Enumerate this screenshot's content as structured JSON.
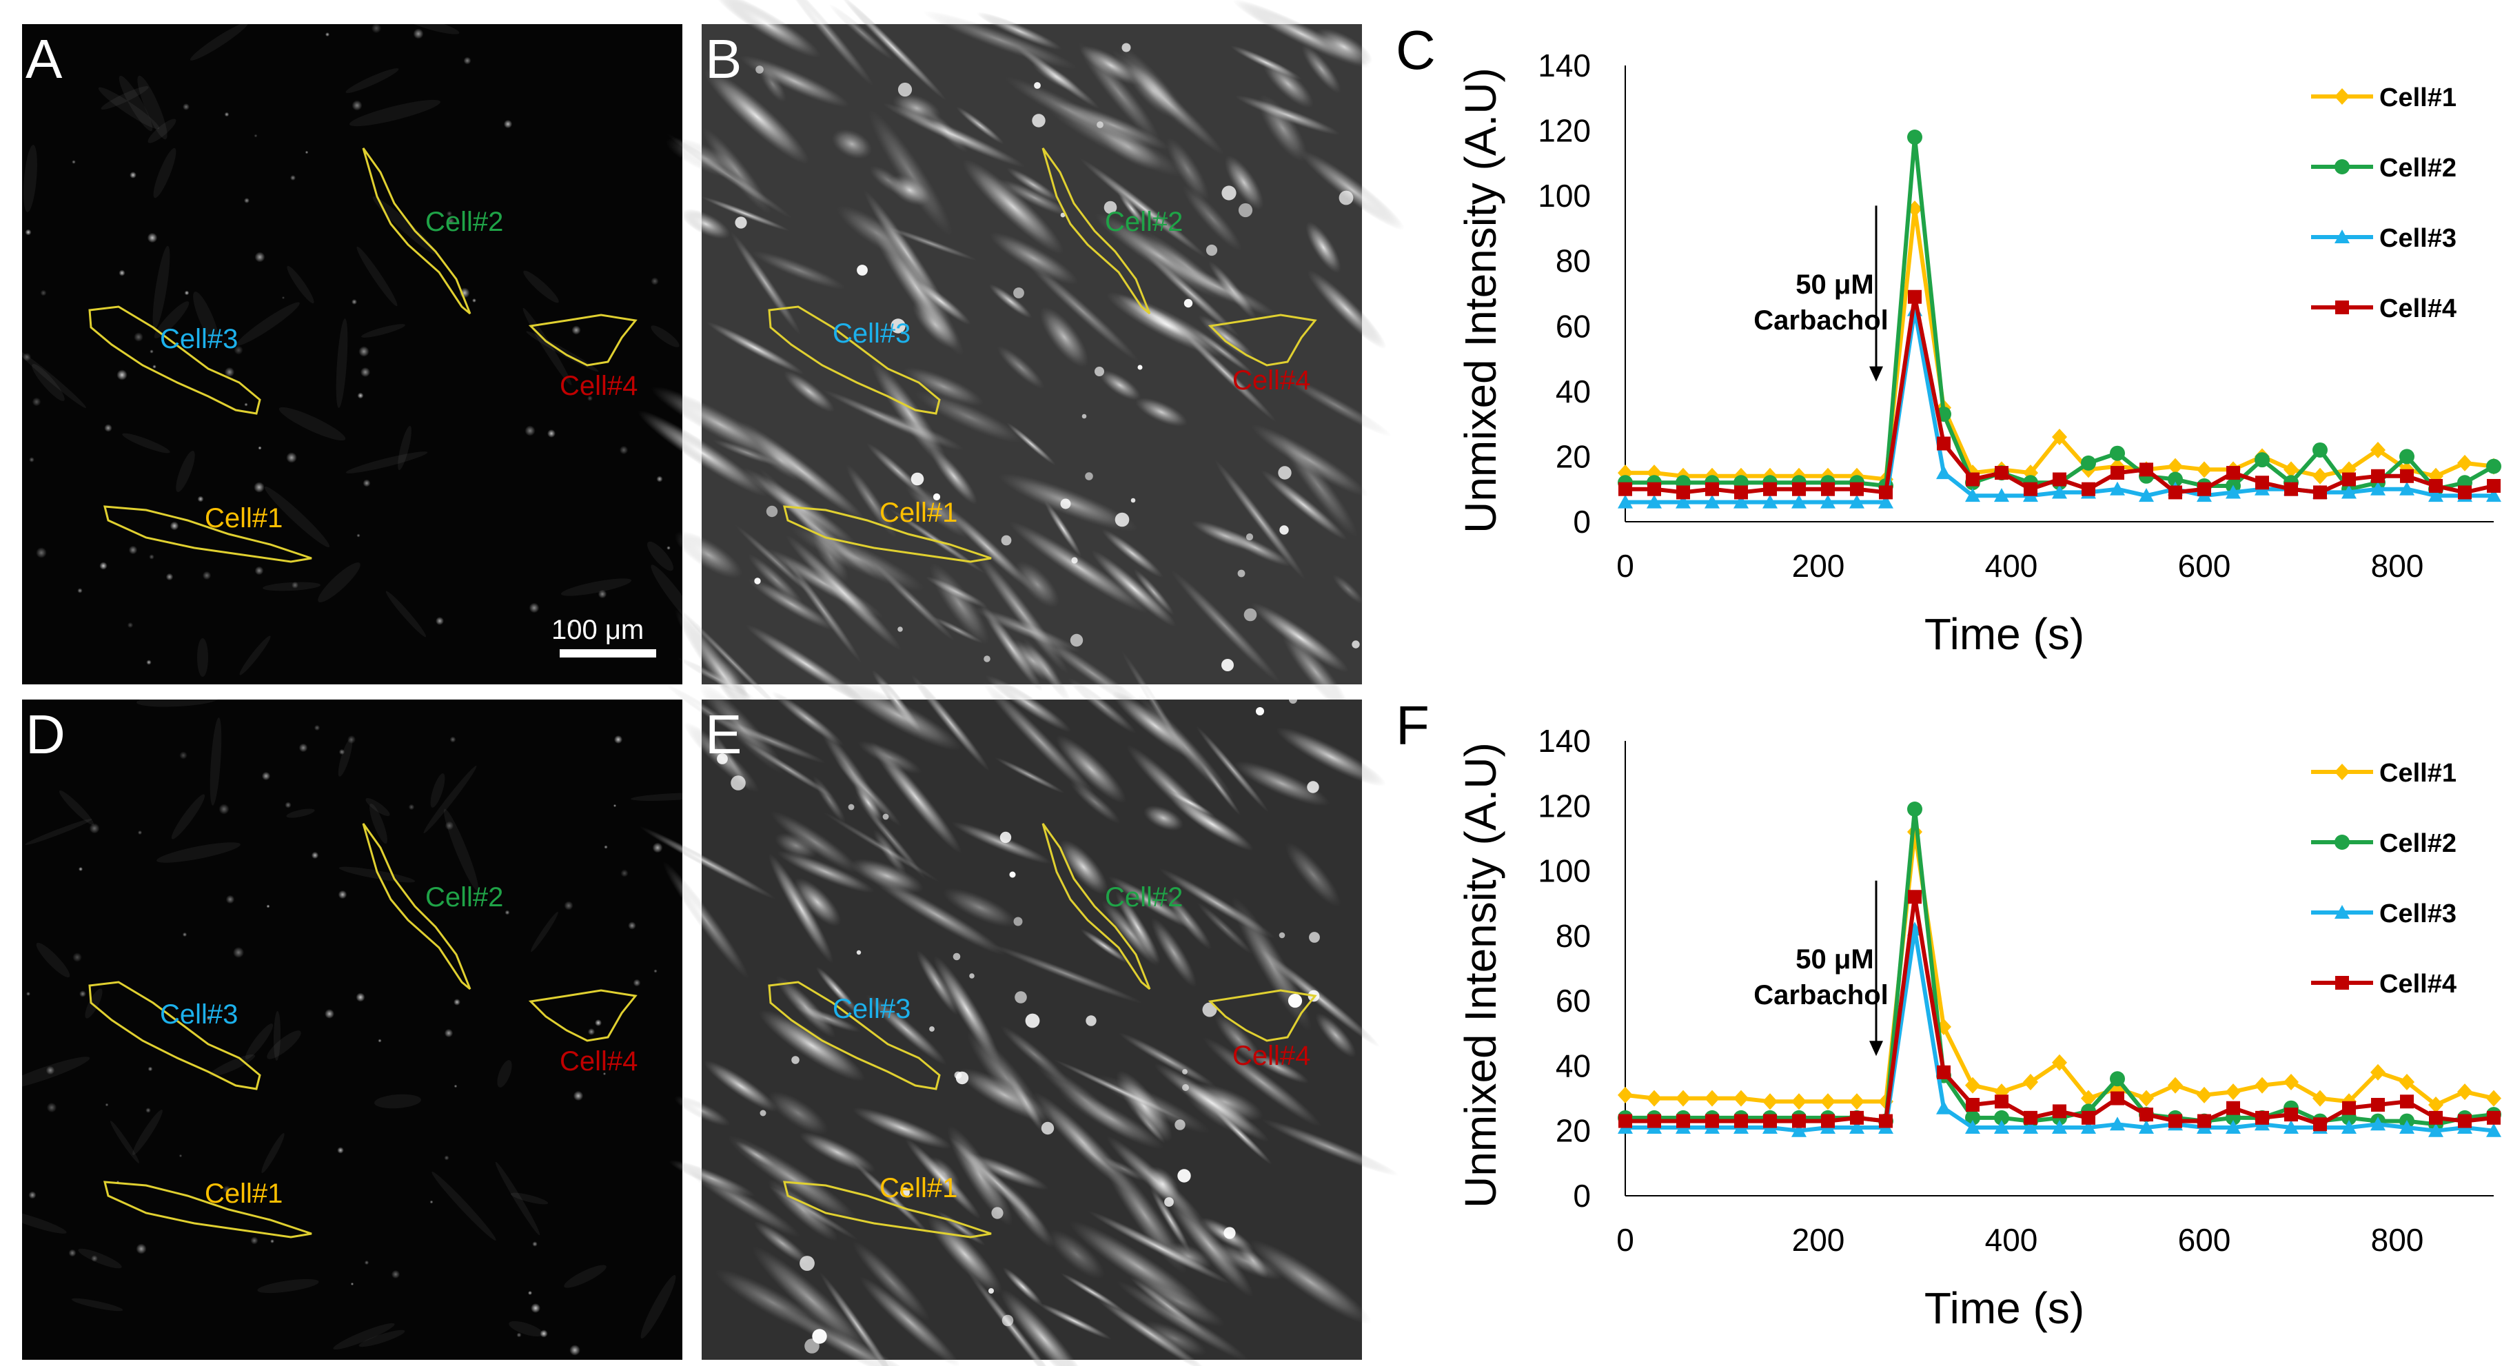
{
  "colors": {
    "cell1": "#FFC000",
    "cell2": "#1FA347",
    "cell3": "#1CB1EC",
    "cell4": "#C00000",
    "outline": "#E0D030"
  },
  "images": {
    "scale_bar_label": "100 μm",
    "panels": [
      {
        "letter": "A",
        "style": "dim"
      },
      {
        "letter": "B",
        "style": "bright"
      },
      {
        "letter": "D",
        "style": "dim"
      },
      {
        "letter": "E",
        "style": "bright"
      }
    ],
    "cell_labels": [
      "Cell#1",
      "Cell#2",
      "Cell#3",
      "Cell#4"
    ]
  },
  "chart_data": [
    {
      "panel": "C",
      "type": "line",
      "title": "",
      "xlabel": "Time (s)",
      "ylabel": "Unmixed Intensity (A.U)",
      "xlim": [
        0,
        900
      ],
      "ylim": [
        0,
        140
      ],
      "xticks": [
        0,
        200,
        400,
        600,
        800
      ],
      "yticks": [
        0,
        20,
        40,
        60,
        80,
        100,
        120,
        140
      ],
      "annotation": [
        "50 μM",
        "Carbachol"
      ],
      "annotation_x": 260,
      "x": [
        0,
        30,
        60,
        90,
        120,
        150,
        180,
        210,
        240,
        270,
        300,
        330,
        360,
        390,
        420,
        450,
        480,
        510,
        540,
        570,
        600,
        630,
        660,
        690,
        720,
        750,
        780,
        810,
        840,
        870,
        900
      ],
      "series": [
        {
          "name": "Cell#1",
          "marker": "diamond",
          "values": [
            15,
            15,
            14,
            14,
            14,
            14,
            14,
            14,
            14,
            13,
            96,
            35,
            15,
            16,
            15,
            26,
            16,
            17,
            16,
            17,
            16,
            16,
            20,
            16,
            14,
            16,
            22,
            16,
            14,
            18,
            17
          ]
        },
        {
          "name": "Cell#2",
          "marker": "circle",
          "values": [
            12,
            12,
            12,
            12,
            12,
            12,
            12,
            12,
            12,
            11,
            118,
            33,
            12,
            15,
            12,
            12,
            18,
            21,
            14,
            13,
            11,
            11,
            19,
            12,
            22,
            10,
            12,
            20,
            10,
            12,
            17
          ]
        },
        {
          "name": "Cell#3",
          "marker": "triangle",
          "values": [
            6,
            6,
            6,
            6,
            6,
            6,
            6,
            6,
            6,
            6,
            65,
            15,
            8,
            8,
            8,
            9,
            9,
            10,
            8,
            10,
            8,
            9,
            10,
            10,
            9,
            9,
            10,
            10,
            8,
            8,
            8
          ]
        },
        {
          "name": "Cell#4",
          "marker": "square",
          "values": [
            10,
            10,
            9,
            10,
            9,
            10,
            10,
            10,
            10,
            9,
            69,
            24,
            13,
            15,
            10,
            13,
            10,
            15,
            16,
            9,
            10,
            15,
            12,
            10,
            9,
            13,
            14,
            14,
            11,
            9,
            11
          ]
        }
      ]
    },
    {
      "panel": "F",
      "type": "line",
      "title": "",
      "xlabel": "Time (s)",
      "ylabel": "Unmixed Intensity (A.U)",
      "xlim": [
        0,
        900
      ],
      "ylim": [
        0,
        140
      ],
      "xticks": [
        0,
        200,
        400,
        600,
        800
      ],
      "yticks": [
        0,
        20,
        40,
        60,
        80,
        100,
        120,
        140
      ],
      "annotation": [
        "50 μM",
        "Carbachol"
      ],
      "annotation_x": 260,
      "x": [
        0,
        30,
        60,
        90,
        120,
        150,
        180,
        210,
        240,
        270,
        300,
        330,
        360,
        390,
        420,
        450,
        480,
        510,
        540,
        570,
        600,
        630,
        660,
        690,
        720,
        750,
        780,
        810,
        840,
        870,
        900
      ],
      "series": [
        {
          "name": "Cell#1",
          "marker": "diamond",
          "values": [
            31,
            30,
            30,
            30,
            30,
            29,
            29,
            29,
            29,
            29,
            112,
            52,
            34,
            32,
            35,
            41,
            30,
            33,
            30,
            34,
            31,
            32,
            34,
            35,
            30,
            29,
            38,
            35,
            28,
            32,
            30
          ]
        },
        {
          "name": "Cell#2",
          "marker": "circle",
          "values": [
            24,
            24,
            24,
            24,
            24,
            24,
            24,
            24,
            24,
            23,
            119,
            37,
            24,
            24,
            23,
            24,
            26,
            36,
            25,
            24,
            23,
            24,
            24,
            27,
            23,
            24,
            23,
            23,
            22,
            24,
            25
          ]
        },
        {
          "name": "Cell#3",
          "marker": "triangle",
          "values": [
            21,
            21,
            21,
            21,
            21,
            21,
            20,
            21,
            21,
            21,
            82,
            27,
            21,
            21,
            21,
            21,
            21,
            22,
            21,
            22,
            21,
            21,
            22,
            21,
            21,
            21,
            22,
            21,
            20,
            21,
            20
          ]
        },
        {
          "name": "Cell#4",
          "marker": "square",
          "values": [
            23,
            23,
            23,
            23,
            23,
            23,
            23,
            23,
            24,
            23,
            92,
            38,
            28,
            29,
            24,
            26,
            24,
            30,
            25,
            23,
            23,
            27,
            24,
            25,
            22,
            27,
            28,
            29,
            24,
            23,
            24
          ]
        }
      ]
    }
  ]
}
